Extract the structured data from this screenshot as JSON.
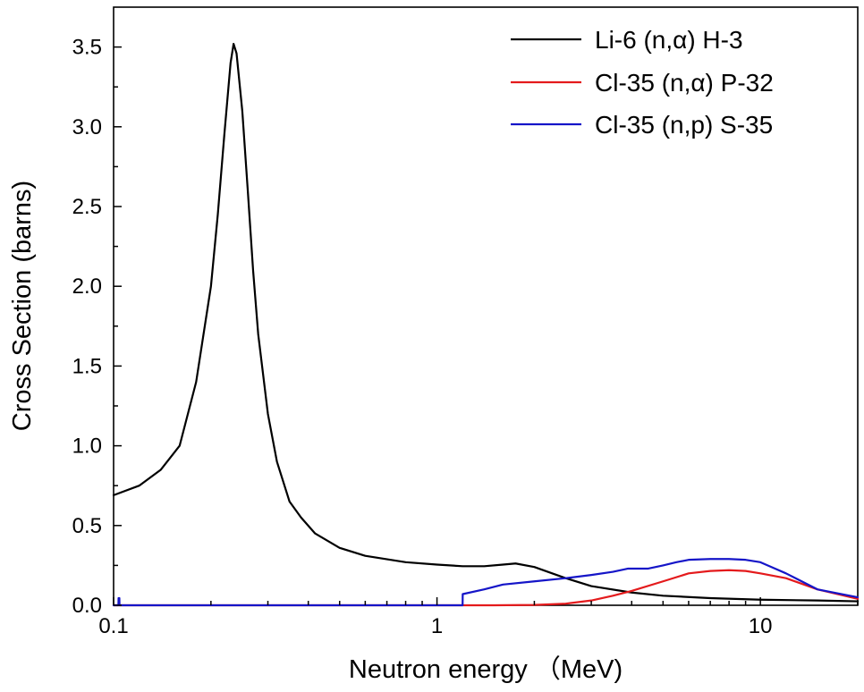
{
  "chart_data": {
    "type": "line",
    "title": "",
    "xlabel": "Neutron energy  （MeV)",
    "ylabel": "Cross Section (barns)",
    "xscale": "log",
    "xlim": [
      0.1,
      20
    ],
    "ylim": [
      0.0,
      3.75
    ],
    "x_ticks": [
      0.1,
      1,
      10
    ],
    "x_tick_labels": [
      "0.1",
      "1",
      "10"
    ],
    "y_ticks": [
      0.0,
      0.5,
      1.0,
      1.5,
      2.0,
      2.5,
      3.0,
      3.5
    ],
    "y_tick_labels": [
      "0.0",
      "0.5",
      "1.0",
      "1.5",
      "2.0",
      "2.5",
      "3.0",
      "3.5"
    ],
    "legend_position": "top-right",
    "colors": {
      "axis": "#000000",
      "li6": "#000000",
      "cl35_alpha": "#e41a1c",
      "cl35_p": "#1515c8"
    },
    "series": [
      {
        "name": "Li-6 (n,α) H-3",
        "color": "#000000",
        "x": [
          0.1,
          0.12,
          0.14,
          0.16,
          0.18,
          0.2,
          0.21,
          0.22,
          0.23,
          0.235,
          0.24,
          0.25,
          0.26,
          0.27,
          0.28,
          0.3,
          0.32,
          0.35,
          0.38,
          0.42,
          0.5,
          0.6,
          0.8,
          1.0,
          1.2,
          1.4,
          1.6,
          1.75,
          2.0,
          2.5,
          3.0,
          4.0,
          5.0,
          7.0,
          10.0,
          15.0,
          20.0
        ],
        "y": [
          0.69,
          0.75,
          0.85,
          1.0,
          1.4,
          2.0,
          2.45,
          2.95,
          3.4,
          3.52,
          3.46,
          3.1,
          2.6,
          2.1,
          1.7,
          1.2,
          0.9,
          0.65,
          0.55,
          0.45,
          0.36,
          0.31,
          0.27,
          0.255,
          0.245,
          0.245,
          0.255,
          0.262,
          0.24,
          0.17,
          0.12,
          0.08,
          0.06,
          0.045,
          0.035,
          0.03,
          0.025
        ]
      },
      {
        "name": "Cl-35 (n,α) P-32",
        "color": "#e41a1c",
        "x": [
          0.1,
          1.0,
          1.5,
          2.0,
          2.5,
          3.0,
          3.5,
          4.0,
          5.0,
          6.0,
          7.0,
          8.0,
          9.0,
          10.0,
          12.0,
          15.0,
          20.0
        ],
        "y": [
          0.0,
          0.0,
          0.0,
          0.002,
          0.01,
          0.03,
          0.06,
          0.09,
          0.15,
          0.2,
          0.215,
          0.22,
          0.215,
          0.2,
          0.17,
          0.1,
          0.04
        ]
      },
      {
        "name": "Cl-35 (n,p) S-35",
        "color": "#1515c8",
        "x": [
          0.1,
          0.1035,
          0.1036,
          0.1042,
          0.1043,
          1.0,
          1.2,
          1.201,
          1.4,
          1.6,
          2.0,
          2.5,
          3.0,
          3.5,
          3.9,
          4.0,
          4.5,
          5.0,
          5.5,
          6.0,
          7.0,
          8.0,
          9.0,
          10.0,
          12.0,
          15.0,
          20.0
        ],
        "y": [
          0.0,
          0.0,
          0.045,
          0.045,
          0.0,
          0.0,
          0.0,
          0.07,
          0.1,
          0.13,
          0.15,
          0.17,
          0.19,
          0.21,
          0.23,
          0.23,
          0.23,
          0.25,
          0.27,
          0.285,
          0.29,
          0.29,
          0.285,
          0.27,
          0.2,
          0.1,
          0.05
        ]
      }
    ]
  }
}
